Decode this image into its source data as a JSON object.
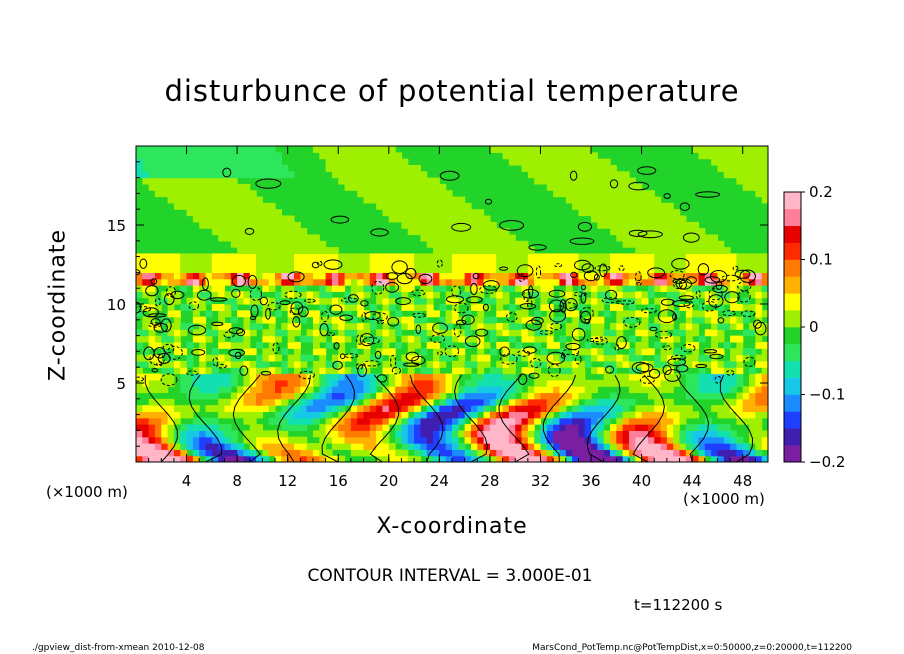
{
  "chart_data": {
    "type": "heatmap",
    "title": "disturbunce of potential temperature",
    "xlabel": "X-coordinate",
    "ylabel": "Z-coordinate",
    "x_unit_left": "(×1000 m)",
    "x_unit_right": "(×1000 m)",
    "xlim": [
      0,
      50
    ],
    "ylim": [
      0,
      20
    ],
    "xticks": [
      "4",
      "8",
      "12",
      "16",
      "20",
      "24",
      "28",
      "32",
      "36",
      "40",
      "44",
      "48"
    ],
    "yticks": [
      "5",
      "10",
      "15"
    ],
    "colorbar": {
      "range": [
        -0.2,
        0.2
      ],
      "labels": [
        "0.2",
        "0.1",
        "0",
        "−0.1",
        "−0.2"
      ],
      "colors": [
        "#7b1fa2",
        "#3f1fb0",
        "#1f3fff",
        "#1a8cff",
        "#17c8e6",
        "#12e0b0",
        "#2ee65c",
        "#22d42a",
        "#9ef000",
        "#ffff00",
        "#ffb000",
        "#ff7a00",
        "#ff2a00",
        "#e60000",
        "#ff7f9a",
        "#ffb6c8"
      ]
    },
    "contour_interval": "CONTOUR INTERVAL = 3.000E-01",
    "time_label": "t=112200 s",
    "layers": [
      {
        "z": [
          0,
          5.5
        ],
        "pattern": "vertical plumes, strong negative/positive cores"
      },
      {
        "z": [
          5.5,
          13
        ],
        "pattern": "dense turbulent contours, mixed"
      },
      {
        "z": [
          12,
          13
        ],
        "pattern": "thin positive band near top of mixing"
      },
      {
        "z": [
          13,
          20
        ],
        "pattern": "near zero, green"
      }
    ]
  },
  "footer": {
    "left": "./gpview_dist-from-xmean  2010-12-08",
    "right": "MarsCond_PotTemp.nc@PotTempDist,x=0:50000,z=0:20000,t=112200"
  }
}
